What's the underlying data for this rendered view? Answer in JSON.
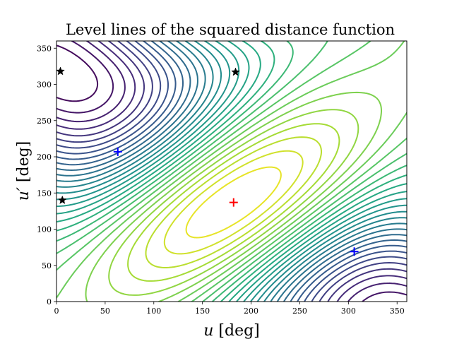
{
  "chart_data": {
    "type": "contour",
    "title": "Level lines of the squared distance function",
    "xlabel": {
      "symbol": "u",
      "unit": "[deg]"
    },
    "ylabel": {
      "symbol": "u′",
      "unit": "[deg]"
    },
    "xlim": [
      0,
      360
    ],
    "ylim": [
      0,
      360
    ],
    "xticks": [
      0,
      50,
      100,
      150,
      200,
      250,
      300,
      350
    ],
    "yticks": [
      0,
      50,
      100,
      150,
      200,
      250,
      300,
      350
    ],
    "colormap": "viridis",
    "contour_center": [
      182,
      137
    ],
    "contour_levels": 30,
    "markers": [
      {
        "type": "plus",
        "color": "#ff0000",
        "x": 182,
        "y": 137
      },
      {
        "type": "plus",
        "color": "#0000ff",
        "x": 63,
        "y": 207
      },
      {
        "type": "plus",
        "color": "#0000ff",
        "x": 306,
        "y": 69
      },
      {
        "type": "star",
        "color": "#000000",
        "x": 4,
        "y": 318
      },
      {
        "type": "star",
        "color": "#000000",
        "x": 184,
        "y": 317
      },
      {
        "type": "star",
        "color": "#000000",
        "x": 6,
        "y": 140
      }
    ]
  }
}
